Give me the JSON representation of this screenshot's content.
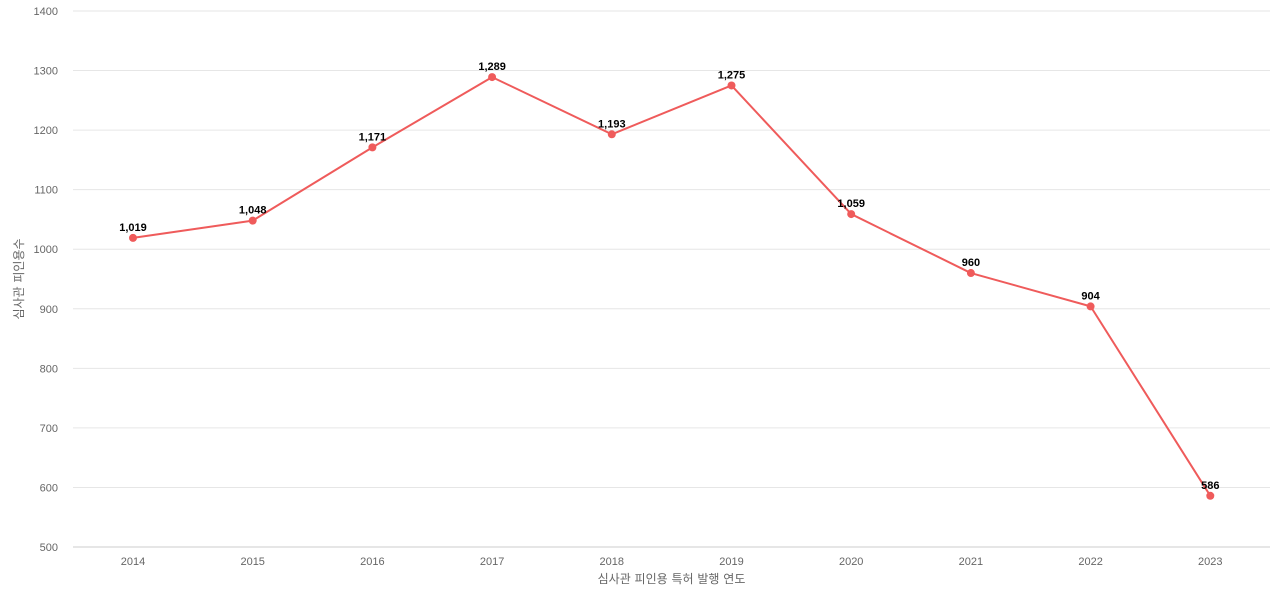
{
  "chart_data": {
    "type": "line",
    "title": "",
    "xlabel": "심사관 피인용 특허 발행 연도",
    "ylabel": "심사관 피인용수",
    "categories": [
      "2014",
      "2015",
      "2016",
      "2017",
      "2018",
      "2019",
      "2020",
      "2021",
      "2022",
      "2023"
    ],
    "series": [
      {
        "values": [
          1019,
          1048,
          1171,
          1289,
          1193,
          1275,
          1059,
          960,
          904,
          586
        ],
        "value_labels": [
          "1,019",
          "1,048",
          "1,171",
          "1,289",
          "1,193",
          "1,275",
          "1,059",
          "960",
          "904",
          "586"
        ],
        "color": "#ef5b5b"
      }
    ],
    "ylim": [
      500,
      1400
    ],
    "yticks": [
      "500",
      "600",
      "700",
      "800",
      "900",
      "1000",
      "1100",
      "1200",
      "1300",
      "1400"
    ],
    "grid": true,
    "legend": "none"
  }
}
